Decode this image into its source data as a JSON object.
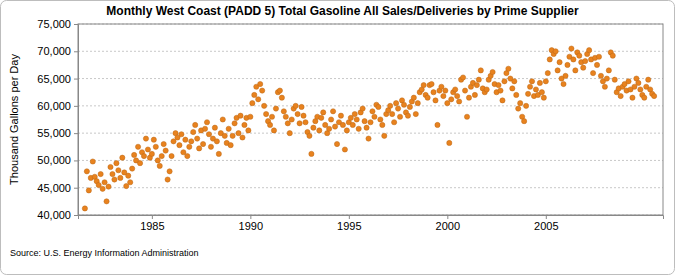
{
  "chart_data": {
    "type": "scatter",
    "title": "Monthly West Coast (PADD 5) Total Gasoline All Sales/Deliveries by Prime Supplier",
    "y_label": "Thousand Gallons per Day",
    "source": "Source: U.S. Energy Information Administration",
    "color": "#e8821e",
    "marker": "circle",
    "grid": true,
    "xlim": [
      1981.25,
      2010.95
    ],
    "xticks": [
      1985,
      1990,
      1995,
      2000,
      2005
    ],
    "ylim": [
      40000,
      75000
    ],
    "yticks": [
      {
        "value": 40000,
        "label": "40,000"
      },
      {
        "value": 45000,
        "label": "45,000"
      },
      {
        "value": 50000,
        "label": "50,000"
      },
      {
        "value": 55000,
        "label": "55,000"
      },
      {
        "value": 60000,
        "label": "60,000"
      },
      {
        "value": 65000,
        "label": "65,000"
      },
      {
        "value": 70000,
        "label": "70,000"
      },
      {
        "value": 75000,
        "label": "75,000"
      }
    ],
    "x": [
      1981.6,
      1981.7,
      1981.8,
      1981.9,
      1982.0,
      1982.1,
      1982.2,
      1982.3,
      1982.4,
      1982.5,
      1982.6,
      1982.7,
      1982.8,
      1982.9,
      1983.0,
      1983.1,
      1983.2,
      1983.3,
      1983.4,
      1983.5,
      1983.6,
      1983.7,
      1983.8,
      1983.9,
      1984.0,
      1984.1,
      1984.2,
      1984.3,
      1984.4,
      1984.5,
      1984.6,
      1984.7,
      1984.8,
      1984.9,
      1985.0,
      1985.1,
      1985.2,
      1985.3,
      1985.4,
      1985.5,
      1985.6,
      1985.7,
      1985.8,
      1985.9,
      1986.0,
      1986.1,
      1986.2,
      1986.3,
      1986.4,
      1986.5,
      1986.6,
      1986.7,
      1986.8,
      1986.9,
      1987.0,
      1987.1,
      1987.2,
      1987.3,
      1987.4,
      1987.5,
      1987.6,
      1987.7,
      1987.8,
      1987.9,
      1988.0,
      1988.1,
      1988.2,
      1988.3,
      1988.4,
      1988.5,
      1988.6,
      1988.7,
      1988.8,
      1988.9,
      1989.0,
      1989.1,
      1989.2,
      1989.3,
      1989.4,
      1989.5,
      1989.6,
      1989.7,
      1989.8,
      1989.9,
      1990.0,
      1990.1,
      1990.2,
      1990.3,
      1990.4,
      1990.5,
      1990.6,
      1990.7,
      1990.8,
      1990.9,
      1991.0,
      1991.1,
      1991.2,
      1991.3,
      1991.4,
      1991.5,
      1991.6,
      1991.7,
      1991.8,
      1991.9,
      1992.0,
      1992.1,
      1992.2,
      1992.3,
      1992.4,
      1992.5,
      1992.6,
      1992.7,
      1992.8,
      1992.9,
      1993.0,
      1993.1,
      1993.2,
      1993.3,
      1993.4,
      1993.5,
      1993.6,
      1993.7,
      1993.8,
      1993.9,
      1994.0,
      1994.1,
      1994.2,
      1994.3,
      1994.4,
      1994.5,
      1994.6,
      1994.7,
      1994.8,
      1994.9,
      1995.0,
      1995.1,
      1995.2,
      1995.3,
      1995.4,
      1995.5,
      1995.6,
      1995.7,
      1995.8,
      1995.9,
      1996.0,
      1996.1,
      1996.2,
      1996.3,
      1996.4,
      1996.5,
      1996.6,
      1996.7,
      1996.8,
      1996.9,
      1997.0,
      1997.1,
      1997.2,
      1997.3,
      1997.4,
      1997.5,
      1997.6,
      1997.7,
      1997.8,
      1997.9,
      1998.0,
      1998.1,
      1998.2,
      1998.3,
      1998.4,
      1998.5,
      1998.6,
      1998.7,
      1998.8,
      1998.9,
      1999.0,
      1999.1,
      1999.2,
      1999.3,
      1999.4,
      1999.5,
      1999.6,
      1999.7,
      1999.8,
      1999.9,
      2000.0,
      2000.1,
      2000.2,
      2000.3,
      2000.4,
      2000.5,
      2000.6,
      2000.7,
      2000.8,
      2000.9,
      2001.0,
      2001.1,
      2001.2,
      2001.3,
      2001.4,
      2001.5,
      2001.6,
      2001.7,
      2001.8,
      2001.9,
      2002.0,
      2002.1,
      2002.2,
      2002.3,
      2002.4,
      2002.5,
      2002.6,
      2002.7,
      2002.8,
      2002.9,
      2003.0,
      2003.1,
      2003.2,
      2003.3,
      2003.4,
      2003.5,
      2003.6,
      2003.7,
      2003.8,
      2003.9,
      2004.0,
      2004.1,
      2004.2,
      2004.3,
      2004.4,
      2004.5,
      2004.6,
      2004.7,
      2004.8,
      2004.9,
      2005.0,
      2005.1,
      2005.2,
      2005.3,
      2005.4,
      2005.5,
      2005.6,
      2005.7,
      2005.8,
      2005.9,
      2006.0,
      2006.1,
      2006.2,
      2006.3,
      2006.4,
      2006.5,
      2006.6,
      2006.7,
      2006.8,
      2006.9,
      2007.0,
      2007.1,
      2007.2,
      2007.3,
      2007.4,
      2007.5,
      2007.6,
      2007.7,
      2007.8,
      2007.9,
      2008.0,
      2008.1,
      2008.2,
      2008.3,
      2008.4,
      2008.5,
      2008.6,
      2008.7,
      2008.8,
      2008.9,
      2009.0,
      2009.1,
      2009.2,
      2009.3,
      2009.4,
      2009.5,
      2009.6,
      2009.7,
      2009.8,
      2009.9,
      2010.0,
      2010.1,
      2010.2,
      2010.3,
      2010.4,
      2010.5
    ],
    "values": [
      41200,
      48000,
      44500,
      46800,
      49800,
      47000,
      46200,
      45500,
      47500,
      44800,
      46000,
      42500,
      45200,
      48800,
      47500,
      46500,
      49500,
      48200,
      46800,
      50500,
      47800,
      45300,
      47200,
      46000,
      48500,
      51000,
      50000,
      52500,
      49500,
      51500,
      50800,
      54000,
      52000,
      50500,
      51200,
      53800,
      52500,
      50000,
      49000,
      50800,
      53000,
      51800,
      46500,
      48000,
      50800,
      53500,
      55000,
      54200,
      52800,
      54800,
      51500,
      53800,
      50800,
      52500,
      53500,
      55200,
      56500,
      54000,
      52200,
      55500,
      53000,
      55800,
      57000,
      54800,
      52500,
      54000,
      56000,
      53500,
      51200,
      55000,
      57500,
      54500,
      53200,
      55800,
      52800,
      54500,
      56800,
      57800,
      55000,
      58200,
      54200,
      56500,
      57800,
      55500,
      58000,
      60500,
      62000,
      63500,
      61200,
      64000,
      62800,
      60000,
      58500,
      57200,
      56500,
      58000,
      55500,
      59500,
      62500,
      62800,
      61500,
      59000,
      58000,
      56800,
      55000,
      57500,
      59500,
      60000,
      58500,
      56800,
      59800,
      58200,
      57000,
      55200,
      54500,
      51200,
      56000,
      57200,
      58000,
      55500,
      57800,
      58800,
      56500,
      55000,
      55800,
      57500,
      59000,
      56200,
      53000,
      57000,
      58200,
      56500,
      52000,
      55500,
      57000,
      57800,
      56500,
      58500,
      57500,
      55800,
      58800,
      59500,
      57200,
      56000,
      54000,
      57000,
      59000,
      58000,
      60200,
      59800,
      57500,
      56500,
      54500,
      58500,
      59200,
      60000,
      58500,
      57000,
      60500,
      59500,
      58000,
      61000,
      60200,
      58800,
      58200,
      59800,
      60800,
      61500,
      58500,
      60500,
      62500,
      63000,
      63800,
      62000,
      61500,
      63800,
      64000,
      62500,
      61000,
      56500,
      62800,
      63500,
      61800,
      62800,
      60500,
      53200,
      61200,
      62500,
      63000,
      61800,
      60800,
      64800,
      65200,
      62800,
      58000,
      61500,
      63500,
      64200,
      62000,
      63800,
      64800,
      66500,
      63200,
      62500,
      63000,
      64800,
      65500,
      66200,
      64000,
      62500,
      63800,
      62800,
      61000,
      64500,
      66000,
      66800,
      65000,
      63200,
      64500,
      62000,
      59500,
      60500,
      58000,
      57200,
      60000,
      62200,
      63500,
      64500,
      61800,
      63000,
      62000,
      64200,
      62500,
      61500,
      64500,
      66000,
      68500,
      70200,
      69500,
      70000,
      66500,
      68000,
      65000,
      64000,
      65500,
      67500,
      69000,
      70500,
      68500,
      66500,
      69800,
      69200,
      68000,
      67000,
      68200,
      69500,
      70200,
      68500,
      66000,
      68800,
      67500,
      69000,
      65500,
      64500,
      63500,
      65000,
      66500,
      69800,
      69200,
      64800,
      62500,
      63200,
      61800,
      63500,
      64000,
      62800,
      64500,
      63000,
      61500,
      63500,
      65000,
      64200,
      63000,
      62000,
      61500,
      63500,
      64800,
      63000,
      62200,
      61800
    ]
  }
}
